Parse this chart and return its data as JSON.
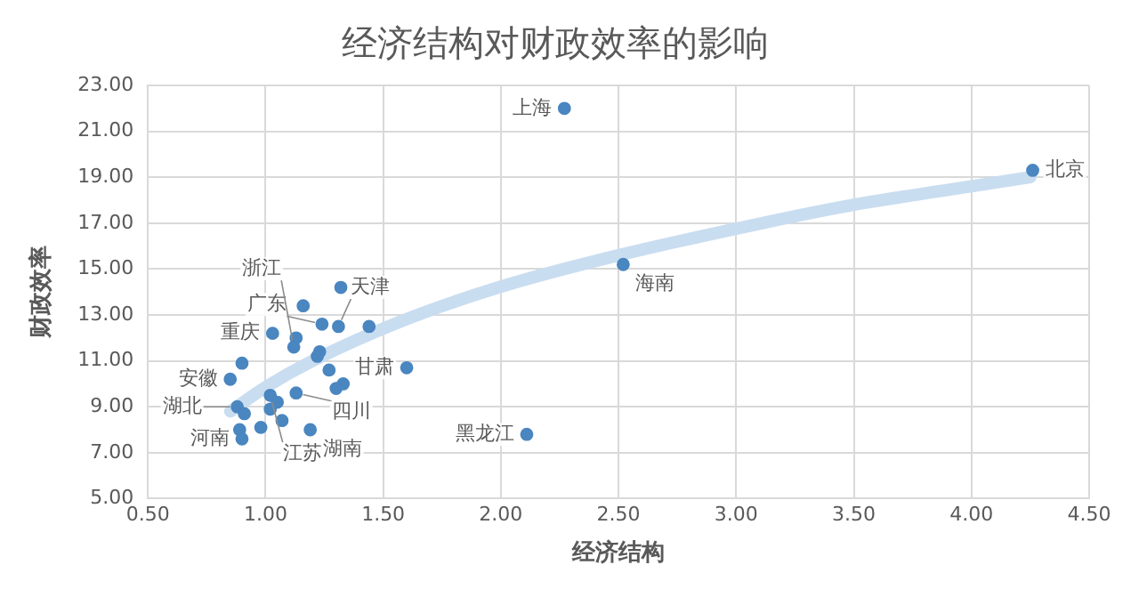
{
  "chart_data": {
    "type": "scatter",
    "title": "经济结构对财政效率的影响",
    "xlabel": "经济结构",
    "ylabel": "财政效率",
    "series": [
      {
        "color": "#4a86c0",
        "x": [
          2.27,
          4.26,
          2.52,
          2.11,
          1.32,
          1.16,
          1.03,
          1.24,
          1.31,
          1.44,
          1.13,
          1.12,
          1.23,
          1.22,
          0.9,
          1.27,
          1.6,
          0.85,
          1.33,
          1.3,
          1.13,
          1.02,
          1.05,
          0.88,
          0.91,
          1.02,
          1.07,
          0.98,
          1.19,
          0.89,
          0.9
        ],
        "values": [
          22.0,
          19.3,
          15.2,
          7.8,
          14.2,
          13.4,
          12.2,
          12.6,
          12.5,
          12.5,
          12.0,
          11.6,
          11.4,
          11.2,
          10.9,
          10.6,
          10.7,
          10.2,
          10.0,
          9.8,
          9.6,
          9.5,
          9.2,
          9.0,
          8.7,
          8.9,
          8.4,
          8.1,
          8.0,
          8.0,
          7.6
        ]
      },
      {
        "type": "line",
        "marker": "none",
        "color": "#c9ddf0",
        "x": [
          0.85,
          1.0,
          1.2,
          1.57,
          1.99,
          2.5,
          3.11,
          3.5,
          3.87,
          4.25
        ],
        "values": [
          8.8,
          9.85,
          11.0,
          12.7,
          14.2,
          15.6,
          17.0,
          17.8,
          18.4,
          19.0
        ]
      }
    ],
    "annotations": [
      {
        "text": "上海",
        "x": 2.27,
        "y": 22.0
      },
      {
        "text": "北京",
        "x": 4.26,
        "y": 19.3
      },
      {
        "text": "海南",
        "x": 2.52,
        "y": 15.2
      },
      {
        "text": "黑龙江",
        "x": 2.11,
        "y": 7.8
      },
      {
        "text": "广东",
        "x": 1.24,
        "y": 12.6
      },
      {
        "text": "天津",
        "x": 1.31,
        "y": 12.5
      },
      {
        "text": "重庆",
        "x": 1.03,
        "y": 12.2
      },
      {
        "text": "浙江",
        "x": 1.12,
        "y": 11.6
      },
      {
        "text": "安徽",
        "x": 0.85,
        "y": 10.2
      },
      {
        "text": "甘肃",
        "x": 1.6,
        "y": 10.7
      },
      {
        "text": "江苏",
        "x": 1.02,
        "y": 9.5
      },
      {
        "text": "四川",
        "x": 1.13,
        "y": 9.6
      },
      {
        "text": "湖北",
        "x": 0.88,
        "y": 9.0
      },
      {
        "text": "湖南",
        "x": 1.19,
        "y": 8.0
      },
      {
        "text": "河南",
        "x": 0.9,
        "y": 7.6
      }
    ],
    "xlim": [
      0.5,
      4.5
    ],
    "xticks": [
      {
        "value": 0.5,
        "label": "0.50"
      },
      {
        "value": 1,
        "label": "1.00"
      },
      {
        "value": 1.5,
        "label": "1.50"
      },
      {
        "value": 2,
        "label": "2.00"
      },
      {
        "value": 2.5,
        "label": "2.50"
      },
      {
        "value": 3,
        "label": "3.00"
      },
      {
        "value": 3.5,
        "label": "3.50"
      },
      {
        "value": 4,
        "label": "4.00"
      },
      {
        "value": 4.5,
        "label": "4.50"
      }
    ],
    "ylim": [
      5,
      23
    ],
    "yticks": [
      {
        "value": 5,
        "label": "5.00"
      },
      {
        "value": 7,
        "label": "7.00"
      },
      {
        "value": 9,
        "label": "9.00"
      },
      {
        "value": 11,
        "label": "11.00"
      },
      {
        "value": 13,
        "label": "13.00"
      },
      {
        "value": 15,
        "label": "15.00"
      },
      {
        "value": 17,
        "label": "17.00"
      },
      {
        "value": 19,
        "label": "19.00"
      },
      {
        "value": 21,
        "label": "21.00"
      },
      {
        "value": 23,
        "label": "23.00"
      }
    ],
    "grid": true,
    "legend": false,
    "marker": "circle"
  }
}
